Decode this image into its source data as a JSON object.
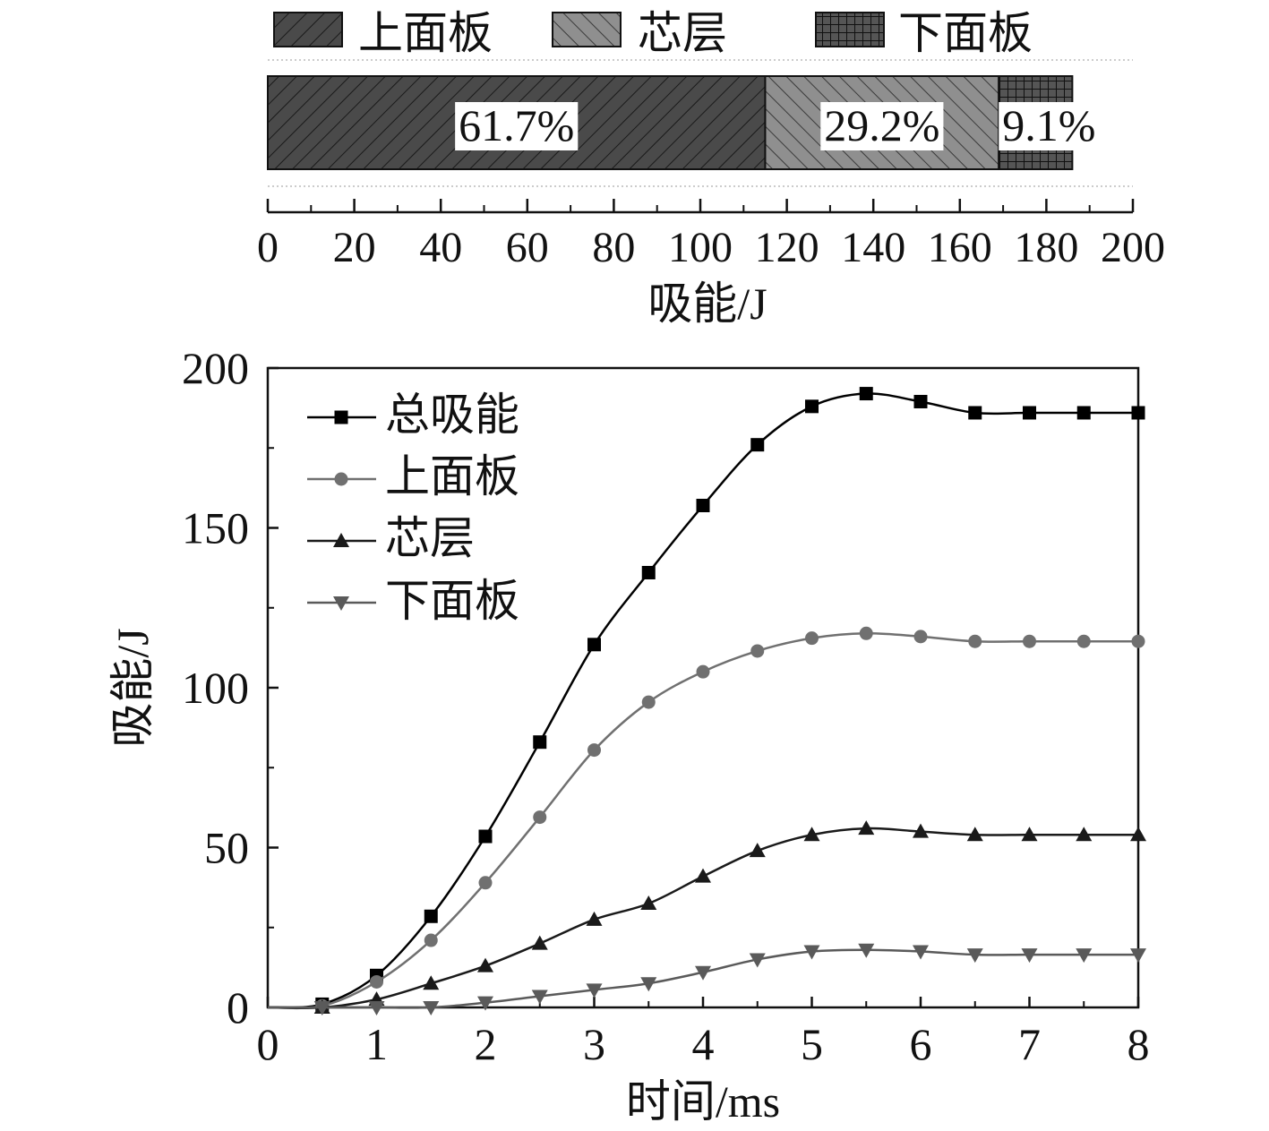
{
  "chart_data": [
    {
      "type": "bar",
      "orientation": "horizontal-stacked",
      "legend": {
        "position": "top",
        "entries": [
          "上面板",
          "芯层",
          "下面板"
        ]
      },
      "series": [
        {
          "name": "上面板",
          "value": 115,
          "percent_label": "61.7%",
          "fill": "#4a4a4a",
          "pattern": "forward-diagonal-hatch"
        },
        {
          "name": "芯层",
          "value": 54,
          "percent_label": "29.2%",
          "fill": "#8c8c8c",
          "pattern": "backward-diagonal-hatch"
        },
        {
          "name": "下面板",
          "value": 17,
          "percent_label": "9.1%",
          "fill": "#4a4a4a",
          "pattern": "crosshatch"
        }
      ],
      "xlabel": "吸能/J",
      "xlim": [
        0,
        200
      ],
      "xticks": [
        0,
        20,
        40,
        60,
        80,
        100,
        120,
        140,
        160,
        180,
        200
      ],
      "grid": "dotted horizontal guide lines"
    },
    {
      "type": "line",
      "xlabel": "时间/ms",
      "ylabel": "吸能/J",
      "xlim": [
        0,
        8
      ],
      "ylim": [
        0,
        200
      ],
      "xticks": [
        0,
        1,
        2,
        3,
        4,
        5,
        6,
        7,
        8
      ],
      "yticks": [
        0,
        50,
        100,
        150,
        200
      ],
      "grid": false,
      "legend": {
        "position": "top-left"
      },
      "x": [
        0,
        0.5,
        1,
        1.5,
        2,
        2.5,
        3,
        3.5,
        4,
        4.5,
        5,
        5.5,
        6,
        6.5,
        7,
        7.5,
        8
      ],
      "series": [
        {
          "name": "总吸能",
          "marker": "square",
          "color": "#000000",
          "values": [
            0,
            1,
            10,
            28.5,
            53.5,
            83,
            113.5,
            136,
            157,
            176,
            188,
            192,
            189.5,
            186,
            186,
            186,
            186
          ]
        },
        {
          "name": "上面板",
          "marker": "circle",
          "color": "#707070",
          "values": [
            0,
            0.5,
            8,
            21,
            39,
            59.5,
            80.5,
            95.5,
            105,
            111.5,
            115.5,
            117,
            116,
            114.5,
            114.5,
            114.5,
            114.5
          ]
        },
        {
          "name": "芯层",
          "marker": "triangle-up",
          "color": "#1a1a1a",
          "values": [
            0,
            0,
            2.5,
            7.5,
            13,
            20,
            27.5,
            32.5,
            41,
            49,
            54,
            56,
            55,
            54,
            54,
            54,
            54
          ]
        },
        {
          "name": "下面板",
          "marker": "triangle-down",
          "color": "#5a5a5a",
          "values": [
            0,
            0,
            0,
            0,
            1.5,
            3.5,
            5.5,
            7.5,
            11,
            15,
            17.5,
            18,
            17.5,
            16.5,
            16.5,
            16.5,
            16.5
          ]
        }
      ]
    }
  ]
}
